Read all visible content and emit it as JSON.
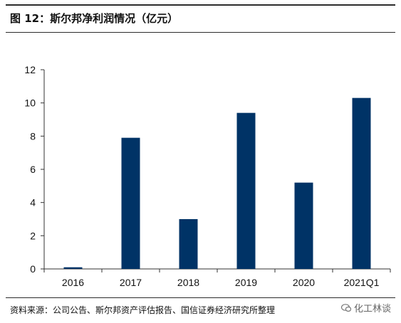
{
  "figure": {
    "title": "图 12：斯尔邦净利润情况（亿元）",
    "source": "资料来源：公司公告、斯尔邦资产评估报告、国信证券经济研究所整理",
    "watermark": "化工林谈"
  },
  "colors": {
    "bar": "#003366",
    "axis": "#333333",
    "text": "#111111"
  },
  "chart_data": {
    "type": "bar",
    "categories": [
      "2016",
      "2017",
      "2018",
      "2019",
      "2020",
      "2021Q1"
    ],
    "values": [
      0.1,
      7.9,
      3.0,
      9.4,
      5.2,
      10.3
    ],
    "ylim": [
      0,
      12
    ],
    "yticks": [
      0,
      2,
      4,
      6,
      8,
      10,
      12
    ],
    "xlabel": "",
    "ylabel": "",
    "grid": false
  }
}
